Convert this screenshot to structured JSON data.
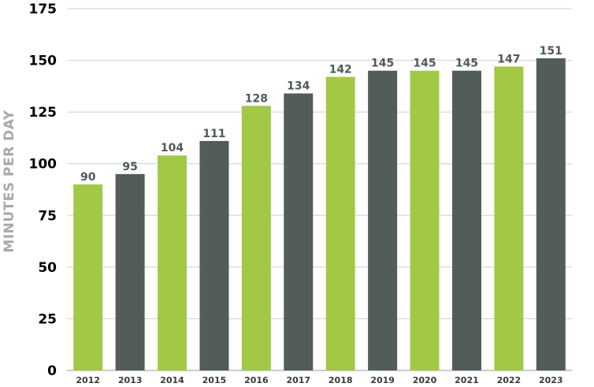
{
  "chart_data": {
    "type": "bar",
    "ylabel": "MINUTES PER DAY",
    "xlabel": "",
    "title": "",
    "categories": [
      "2012",
      "2013",
      "2014",
      "2015",
      "2016",
      "2017",
      "2018",
      "2019",
      "2020",
      "2021",
      "2022",
      "2023"
    ],
    "values": [
      90,
      95,
      104,
      111,
      128,
      134,
      142,
      145,
      145,
      145,
      147,
      151
    ],
    "bar_colors": [
      "#a2c946",
      "#525d57",
      "#a2c946",
      "#525d57",
      "#a2c946",
      "#525d57",
      "#a2c946",
      "#525d57",
      "#a2c946",
      "#525d57",
      "#a2c946",
      "#525d57"
    ],
    "ylim": [
      0,
      175
    ],
    "yticks": [
      0,
      25,
      50,
      75,
      100,
      125,
      150,
      175
    ],
    "grid": true,
    "data_labels": true
  }
}
